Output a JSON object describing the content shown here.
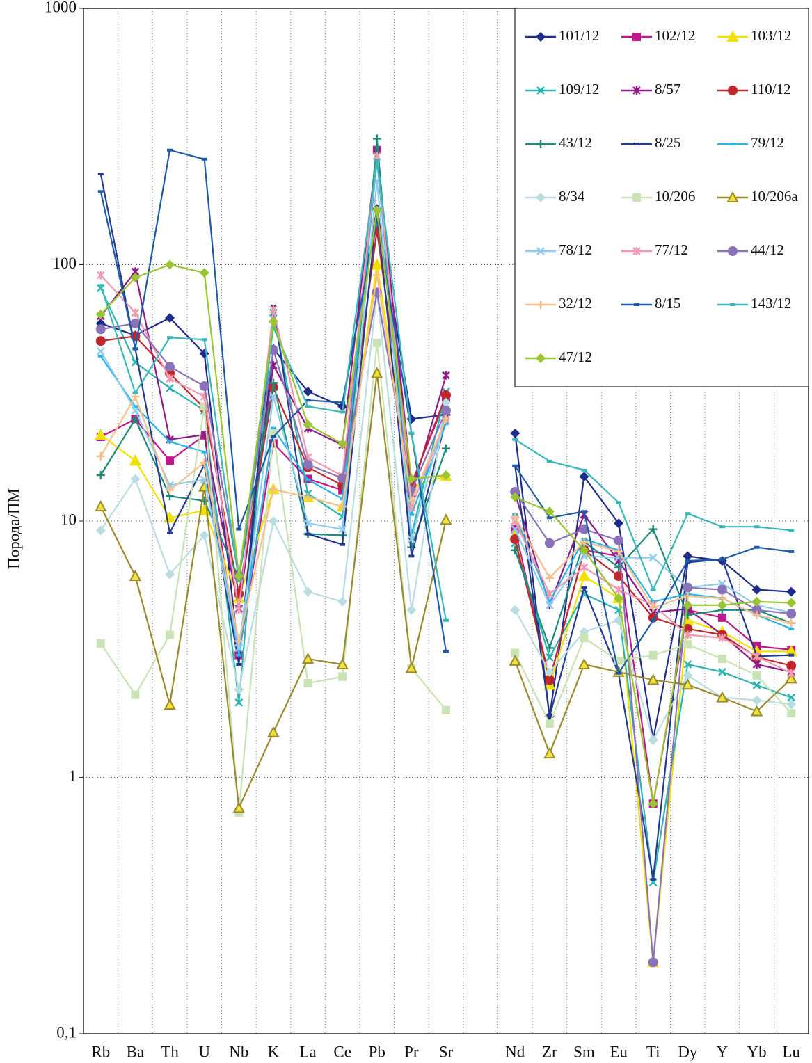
{
  "chart_data": {
    "type": "line",
    "y_label": "Порода/ПМ",
    "log_scale": true,
    "grid": true,
    "legend": "upper right",
    "categories": [
      "Rb",
      "Ba",
      "Th",
      "U",
      "Nb",
      "K",
      "La",
      "Ce",
      "Pb",
      "Pr",
      "Sr",
      null,
      "Nd",
      "Zr",
      "Sm",
      "Eu",
      "Ti",
      "Dy",
      "Y",
      "Yb",
      "Lu"
    ],
    "ylim": [
      0.1,
      1000
    ],
    "yticks": [
      {
        "value": 0.1,
        "label": "0,1"
      },
      1,
      10,
      100,
      1000
    ],
    "series": [
      {
        "name": "101/12",
        "color": "#1f2b8a",
        "marker": "diamond",
        "values": [
          59,
          53,
          62,
          45,
          3.0,
          47,
          32,
          28,
          165,
          25,
          26,
          null,
          22,
          1.73,
          14.9,
          9.8,
          1.4,
          7.3,
          7.0,
          5.4,
          5.3
        ]
      },
      {
        "name": "102/12",
        "color": "#c0188c",
        "marker": "square",
        "values": [
          21.3,
          25,
          17.2,
          21.6,
          3.0,
          20.1,
          14.6,
          13.2,
          280,
          14,
          30,
          null,
          9.3,
          2.4,
          7.7,
          7.3,
          0.79,
          4.5,
          4.2,
          3.25,
          3.15
        ]
      },
      {
        "name": "103/12",
        "color": "#f2e000",
        "marker": "triangle",
        "values": [
          21.7,
          17.2,
          10.3,
          11,
          5,
          13.3,
          12.4,
          11.4,
          100,
          13.6,
          15,
          null,
          8.8,
          2.3,
          6.1,
          5,
          0.19,
          4.1,
          3.7,
          3.1,
          3.1
        ]
      },
      {
        "name": "109/12",
        "color": "#2ab5b0",
        "marker": "x",
        "values": [
          81,
          41.6,
          33,
          27,
          1.96,
          65,
          12.8,
          10.4,
          265,
          8.8,
          32,
          null,
          8.2,
          2.94,
          5.2,
          4.5,
          0.39,
          2.76,
          2.58,
          2.29,
          2.05
        ]
      },
      {
        "name": "8/57",
        "color": "#8b1a8b",
        "marker": "star",
        "values": [
          63,
          94,
          20.8,
          21.7,
          4.55,
          40.5,
          23,
          19.8,
          280,
          12.8,
          37,
          null,
          12.8,
          4.7,
          10.6,
          7.0,
          4.4,
          4.55,
          3.6,
          2.76,
          2.58
        ]
      },
      {
        "name": "110/12",
        "color": "#c0282e",
        "marker": "circle",
        "values": [
          50.4,
          52.6,
          37.7,
          27.5,
          5.2,
          33.2,
          16.2,
          13.8,
          136,
          13.8,
          31,
          null,
          8.5,
          2.4,
          7.7,
          6.1,
          4.2,
          3.8,
          3.6,
          2.95,
          2.73
        ]
      },
      {
        "name": "43/12",
        "color": "#1e8a78",
        "marker": "plus",
        "values": [
          15.1,
          25,
          12.5,
          12,
          6.0,
          34.6,
          8.9,
          8.8,
          310,
          7.9,
          19.2,
          null,
          7.7,
          3.2,
          8.3,
          6.6,
          9.3,
          4.3,
          4.5,
          4.5,
          4.0
        ]
      },
      {
        "name": "8/25",
        "color": "#243a8f",
        "marker": "dash",
        "values": [
          226,
          47,
          9.0,
          16.6,
          2.76,
          69,
          8.9,
          8.1,
          165,
          7.3,
          25,
          null,
          16.4,
          1.73,
          5.5,
          2.53,
          0.4,
          6.9,
          7.1,
          2.97,
          3.0
        ]
      },
      {
        "name": "79/12",
        "color": "#2ab4e6",
        "marker": "dash",
        "values": [
          44,
          28,
          20.4,
          18.6,
          3.0,
          23,
          14.5,
          12.2,
          255,
          10.6,
          24,
          null,
          10.6,
          4.85,
          8.5,
          7.7,
          4.85,
          5.2,
          5.0,
          4.3,
          3.8
        ]
      },
      {
        "name": "8/34",
        "color": "#b9dde0",
        "marker": "diamond",
        "values": [
          9.2,
          14.6,
          6.2,
          8.8,
          2.2,
          10,
          5.3,
          4.85,
          78,
          4.5,
          29,
          null,
          4.5,
          2.58,
          3.7,
          4.1,
          1.4,
          2.5,
          2.05,
          2.0,
          1.93
        ]
      },
      {
        "name": "10/206",
        "color": "#c9e3b5",
        "marker": "square",
        "values": [
          3.33,
          2.1,
          3.6,
          28,
          0.73,
          22,
          2.33,
          2.47,
          49.5,
          2.67,
          1.83,
          null,
          3.06,
          1.62,
          3.5,
          2.85,
          3.0,
          3.3,
          2.9,
          2.5,
          1.78
        ]
      },
      {
        "name": "10/206a",
        "color": "#9a8a2e",
        "marker": "triangle",
        "values": [
          11.4,
          6.1,
          1.92,
          13.6,
          0.76,
          1.5,
          2.9,
          2.76,
          37.7,
          2.67,
          10.1,
          null,
          2.85,
          1.24,
          2.76,
          2.58,
          2.4,
          2.3,
          2.05,
          1.81,
          2.43
        ]
      },
      {
        "name": "78/12",
        "color": "#8fcbee",
        "marker": "x",
        "values": [
          46,
          27,
          13.8,
          14.5,
          3.2,
          30.6,
          9.8,
          9.3,
          212,
          8.5,
          27,
          null,
          9.3,
          4.7,
          7.3,
          7.2,
          7.2,
          5.5,
          5.7,
          4.7,
          4.4
        ]
      },
      {
        "name": "77/12",
        "color": "#ef9ab0",
        "marker": "star",
        "values": [
          91,
          65,
          36,
          30.6,
          4.5,
          67,
          17.7,
          15,
          265,
          11.3,
          25,
          null,
          10,
          5.2,
          6.6,
          5.4,
          4.7,
          3.6,
          3.5,
          2.97,
          2.55
        ]
      },
      {
        "name": "44/12",
        "color": "#8a72b8",
        "marker": "circle",
        "values": [
          56,
          59,
          40,
          33.6,
          6.1,
          46.5,
          16.6,
          14.7,
          78,
          13.1,
          27,
          null,
          13,
          8.2,
          9.3,
          8.4,
          0.19,
          5.5,
          5.4,
          4.5,
          4.35
        ]
      },
      {
        "name": "32/12",
        "color": "#f6c08c",
        "marker": "plus",
        "values": [
          17.9,
          30.6,
          13.2,
          16.9,
          3.4,
          13.3,
          12.4,
          11.4,
          91,
          12,
          25,
          null,
          10.4,
          6,
          8.3,
          7.6,
          4.6,
          5.1,
          5.0,
          4.3,
          4.0
        ]
      },
      {
        "name": "8/15",
        "color": "#1f5aa8",
        "marker": "dash",
        "values": [
          193,
          47,
          280,
          258,
          9.3,
          21.3,
          29.6,
          29,
          150,
          22,
          3.1,
          null,
          16.4,
          10.3,
          10.9,
          2.55,
          4.1,
          7.0,
          7.1,
          7.9,
          7.6
        ]
      },
      {
        "name": "143/12",
        "color": "#3ab8b8",
        "marker": "dash",
        "values": [
          83,
          31.6,
          52,
          51,
          5.85,
          57,
          28,
          26.6,
          255,
          22,
          4.1,
          null,
          20.8,
          17.1,
          15.8,
          11.8,
          5.4,
          10.7,
          9.5,
          9.5,
          9.2
        ]
      },
      {
        "name": "47/12",
        "color": "#9ac431",
        "marker": "diamond",
        "values": [
          64,
          89,
          100,
          93,
          6.1,
          60,
          23.8,
          20,
          163,
          14.6,
          15.1,
          null,
          12.4,
          10.9,
          7.7,
          5.0,
          0.79,
          4.7,
          4.7,
          4.85,
          4.8
        ]
      }
    ]
  }
}
